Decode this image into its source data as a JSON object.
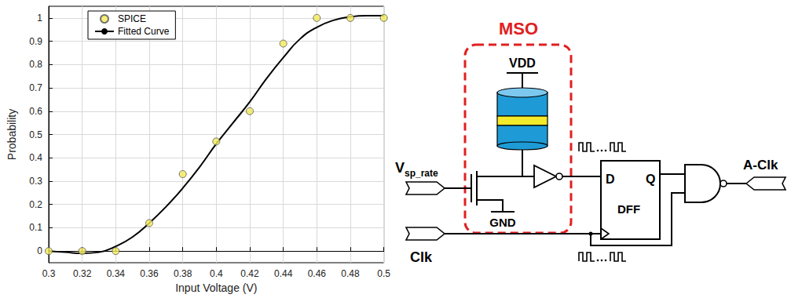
{
  "chart_data": {
    "type": "line",
    "x_label": "Input Voltage (V)",
    "y_label": "Probability",
    "xlim": [
      0.3,
      0.5
    ],
    "xticks": [
      0.3,
      0.32,
      0.34,
      0.36,
      0.38,
      0.4,
      0.42,
      0.44,
      0.46,
      0.48,
      0.5
    ],
    "ylim": [
      -0.05,
      1.05
    ],
    "yticks": [
      0,
      0.1,
      0.2,
      0.3,
      0.4,
      0.5,
      0.6,
      0.7,
      0.8,
      0.9,
      1
    ],
    "grid": true,
    "legend": "upper left",
    "series": [
      {
        "name": "SPICE",
        "type": "scatter",
        "color": "#f2ea5a",
        "marker": "circle",
        "x": [
          0.3,
          0.32,
          0.34,
          0.36,
          0.38,
          0.4,
          0.42,
          0.44,
          0.46,
          0.48,
          0.5
        ],
        "values": [
          0.0,
          0.0,
          0.0,
          0.12,
          0.33,
          0.47,
          0.6,
          0.89,
          1.0,
          1.0,
          1.0
        ]
      },
      {
        "name": "Fitted Curve",
        "type": "line",
        "color": "#000000",
        "marker": "none",
        "line_style": "solid",
        "x": [
          0.3,
          0.31,
          0.32,
          0.33,
          0.34,
          0.35,
          0.36,
          0.37,
          0.38,
          0.39,
          0.4,
          0.41,
          0.42,
          0.43,
          0.44,
          0.45,
          0.46,
          0.47,
          0.48,
          0.49,
          0.5
        ],
        "values": [
          0.0,
          -0.005,
          -0.01,
          -0.005,
          0.02,
          0.06,
          0.12,
          0.19,
          0.27,
          0.36,
          0.46,
          0.55,
          0.64,
          0.74,
          0.83,
          0.91,
          0.96,
          0.99,
          1.005,
          1.01,
          1.01
        ]
      }
    ]
  },
  "diagram": {
    "box_label": "MSO",
    "supply": "VDD",
    "ground": "GND",
    "input": {
      "main": "V",
      "sub": "sp_rate"
    },
    "flipflop": {
      "label": "DFF",
      "d": "D",
      "q": "Q"
    },
    "output": "A-Clk",
    "clock": "Clk"
  }
}
